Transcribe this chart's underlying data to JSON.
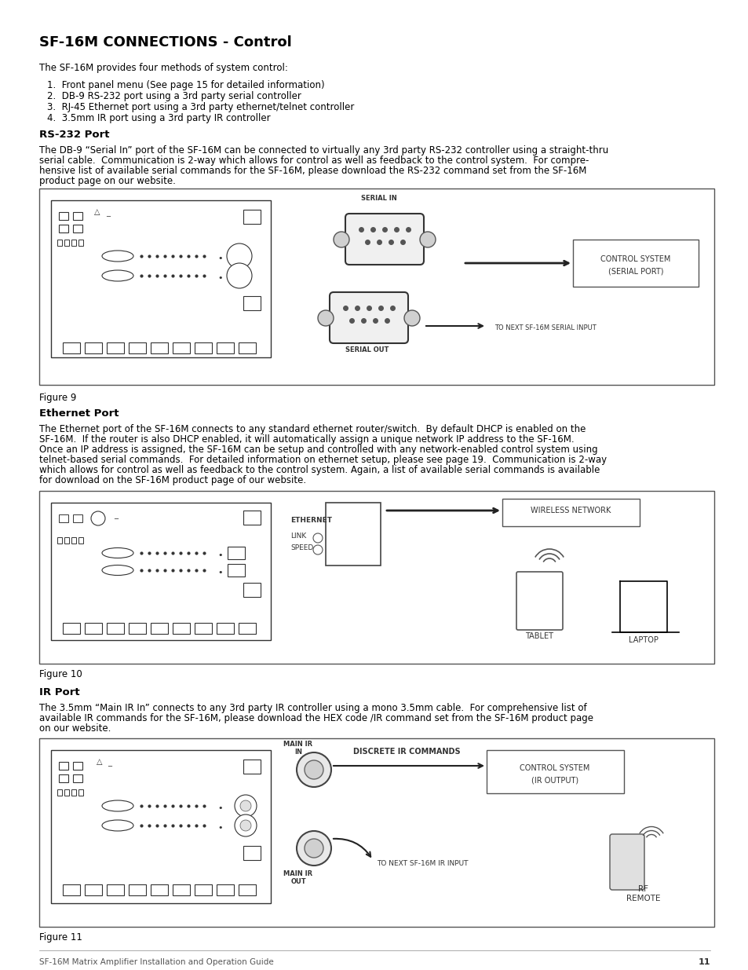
{
  "title": "SF-16M CONNECTIONS - Control",
  "bg_color": "#ffffff",
  "text_color": "#000000",
  "page_number": "11",
  "footer_text": "SF-16M Matrix Amplifier Installation and Operation Guide",
  "intro_text": "The SF-16M provides four methods of system control:",
  "list_items": [
    "1.  Front panel menu (See page 15 for detailed information)",
    "2.  DB-9 RS-232 port using a 3rd party serial controller",
    "3.  RJ-45 Ethernet port using a 3rd party ethernet/telnet controller",
    "4.  3.5mm IR port using a 3rd party IR controller"
  ],
  "rs232_heading": "RS-232 Port",
  "rs232_body": "The DB-9 “Serial In” port of the SF-16M can be connected to virtually any 3rd party RS-232 controller using a straight-thru\nserial cable.  Communication is 2-way which allows for control as well as feedback to the control system.  For compre-\nhensive list of available serial commands for the SF-16M, please download the RS-232 command set from the SF-16M\nproduct page on our website.",
  "fig9_caption": "Figure 9",
  "ethernet_heading": "Ethernet Port",
  "ethernet_body": "The Ethernet port of the SF-16M connects to any standard ethernet router/switch.  By default DHCP is enabled on the\nSF-16M.  If the router is also DHCP enabled, it will automatically assign a unique network IP address to the SF-16M.\nOnce an IP address is assigned, the SF-16M can be setup and controlled with any network-enabled control system using\ntelnet-based serial commands.  For detailed information on ethernet setup, please see page 19.  Communication is 2-way\nwhich allows for control as well as feedback to the control system. Again, a list of available serial commands is available\nfor download on the SF-16M product page of our website.",
  "fig10_caption": "Figure 10",
  "ir_heading": "IR Port",
  "ir_body": "The 3.5mm “Main IR In” connects to any 3rd party IR controller using a mono 3.5mm cable.  For comprehensive list of\navailable IR commands for the SF-16M, please download the HEX code /IR command set from the SF-16M product page\non our website.",
  "fig11_caption": "Figure 11"
}
